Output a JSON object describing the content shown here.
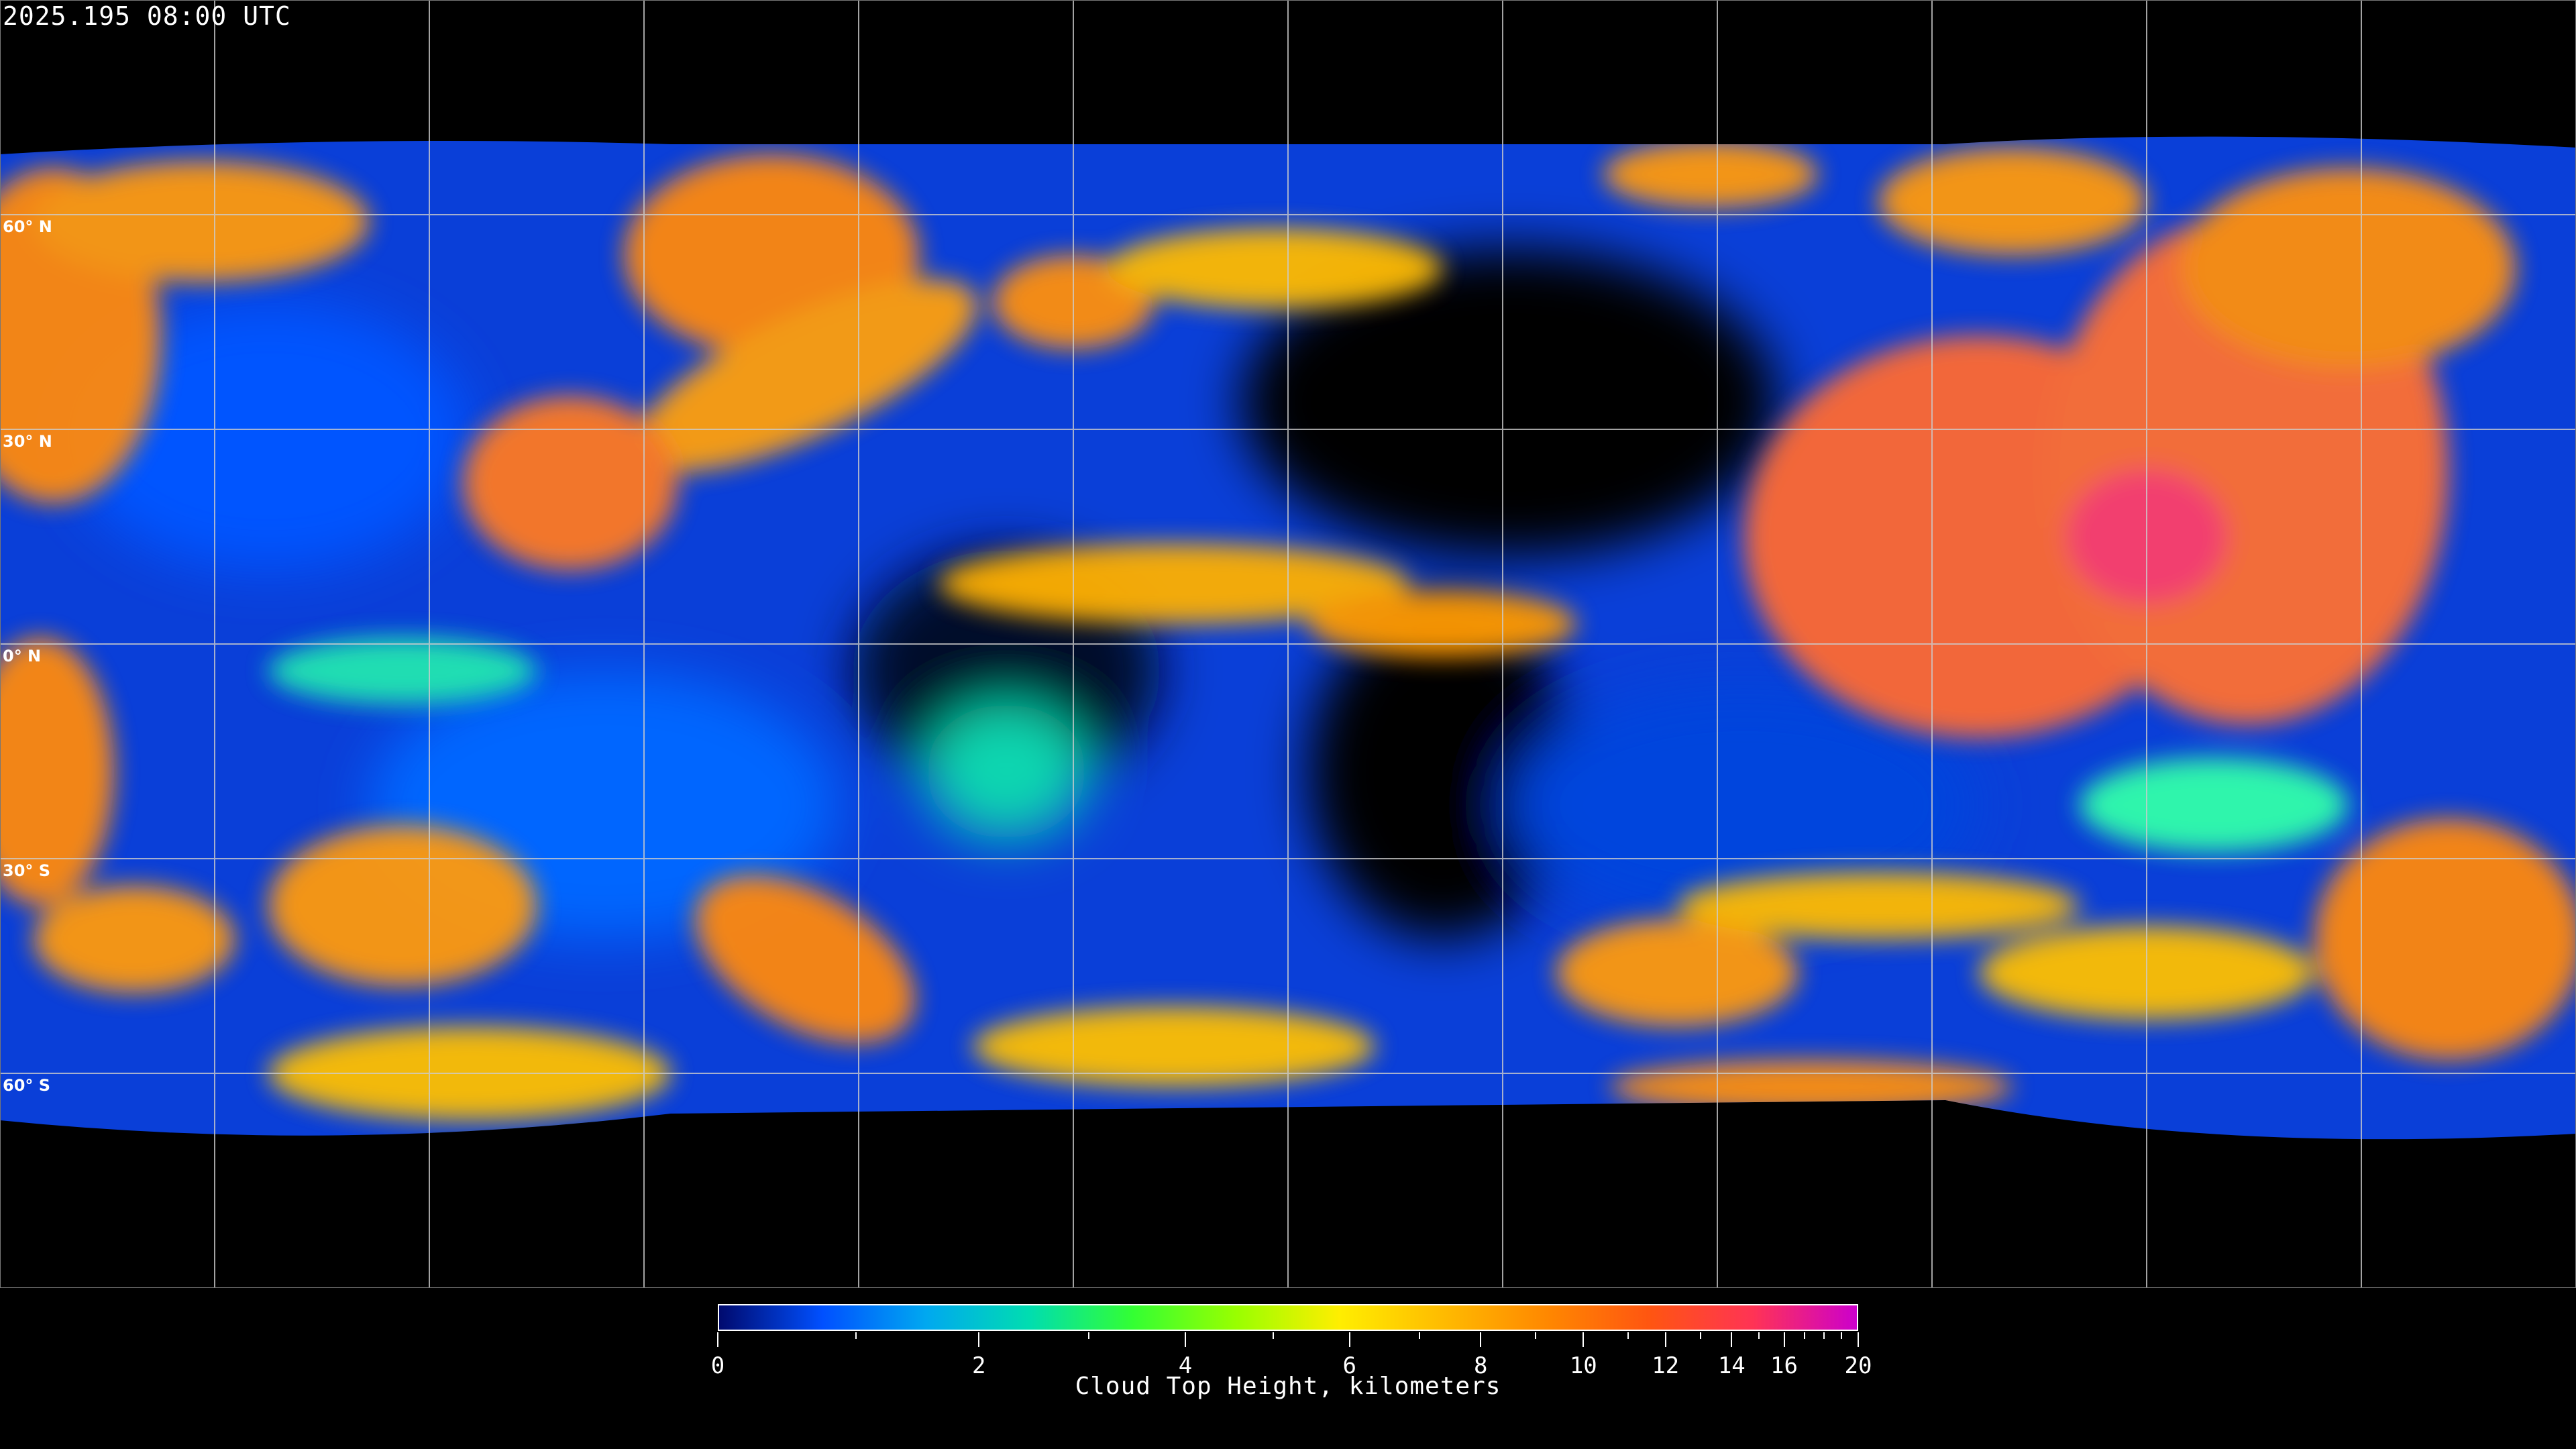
{
  "header": {
    "timestamp": "2025.195 08:00 UTC"
  },
  "map": {
    "projection": "equirectangular",
    "gridline_spacing_degrees": 30,
    "gridline_color": "#cccccc",
    "coastline_color": "#ffffff",
    "lat_labels": [
      {
        "lat": 60,
        "label": "60° N"
      },
      {
        "lat": 30,
        "label": "30° N"
      },
      {
        "lat": 0,
        "label": "0° N"
      },
      {
        "lat": -30,
        "label": "30° S"
      },
      {
        "lat": -60,
        "label": "60° S"
      }
    ]
  },
  "colorbar": {
    "title": "Cloud Top Height, kilometers",
    "min": 0,
    "max": 20,
    "major_ticks": [
      "0",
      "2",
      "4",
      "6",
      "8",
      "10",
      "12",
      "14",
      "16",
      "20"
    ],
    "minor_ticks": [
      1,
      3,
      5,
      7,
      9,
      11,
      13,
      15,
      17,
      18,
      19
    ],
    "colors": [
      "#000a6e",
      "#0050ff",
      "#00a8f0",
      "#00ddb0",
      "#33ff33",
      "#99ff00",
      "#ffee00",
      "#ffbb00",
      "#ff8800",
      "#ff5511",
      "#ff3355",
      "#cc00cc"
    ]
  }
}
